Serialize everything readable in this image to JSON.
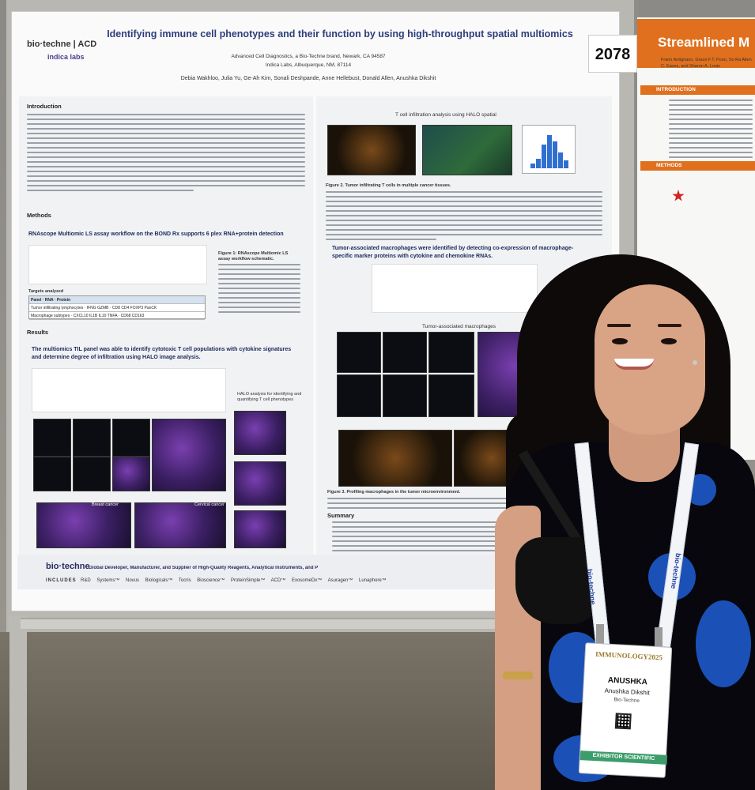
{
  "poster": {
    "number": "2078",
    "title": "Identifying immune cell phenotypes and their function by using high-throughput spatial multiomics",
    "brand_line1": "bio·techne | ACD",
    "brand_line2": "indica labs",
    "affiliation1": "Advanced Cell Diagnostics, a Bio-Techne brand, Newark, CA 94587",
    "affiliation2": "Indica Labs, Albuquerque, NM, 87114",
    "authors": "Debia Wakhloo, Julia Yu, Ge-Ah Kim, Sonali Deshpande, Anne Hellebust, Donald Allen, Anushka Dikshit",
    "intro_heading": "Introduction",
    "methods_heading": "Methods",
    "methods_sub": "RNAscope Multiomic LS assay workflow on the BOND Rx supports 6 plex RNA+protein detection",
    "fig1_caption": "Figure 1: RNAscope Multiomic LS assay workflow schematic.",
    "targets_heading": "Targets analyzed",
    "table": [
      [
        "Panel",
        "RNA",
        "Protein"
      ],
      [
        "Tumor infiltrating lymphocytes",
        "IFNG GZMB",
        "CD8 CD4 FOXP3 PanCK"
      ],
      [
        "Macrophage subtypes",
        "CXCL10 IL1B IL10 TNFA",
        "CD68 CD163"
      ]
    ],
    "results_heading": "Results",
    "results_sub": "The multiomics TIL panel was able to identify cytotoxic T cell populations with cytokine signatures and determine degree of infiltration using HALO image analysis.",
    "halo_caption": "HALO analysis for identifying and quantifying T cell phenotypes",
    "t_infiltration_title": "T cell infiltration analysis using HALO spatial",
    "fig2_caption": "Figure 2. Tumor infiltrating T cells in multiple cancer tissues.",
    "tam_sub": "Tumor-associated macrophages were identified by detecting co-expression of macrophage-specific marker proteins with cytokine and chemokine RNAs.",
    "tam_label": "Tumor-associated macrophages",
    "fig3_caption": "Figure 3. Profiling macrophages in the tumor microenvironment.",
    "summary_heading": "Summary",
    "breast_cancer": "Breast cancer",
    "cervical_cancer": "Cervical cancer",
    "footer_brand": "bio·techne",
    "footer_tag": "Global Developer, Manufacturer, and Supplier of High-Quality Reagents, Analytical Instruments, and Precision Diagnostics.",
    "footer_includes": "INCLUDES",
    "footer_brands": "R&D Systems™ Novus Biologicals™ Tocris Bioscience™ ProteinSimple™ ACD™ ExosomeDx™ Asuragen™ Lunaphore™"
  },
  "neighbor_poster": {
    "title": "Streamlined M",
    "authors": "Frann Antignano, Grace F.T. Poon, So Ra Allen C. Eaves, and Sharon A. Louis",
    "intro_heading": "INTRODUCTION",
    "methods_heading": "METHODS"
  },
  "badge": {
    "event": "IMMUNOLOGY2025",
    "first_name": "ANUSHKA",
    "full_name": "Anushka Dikshit",
    "org": "Bio-Techne",
    "ribbon": "EXHIBITOR SCIENTIFIC",
    "lanyard_text": "bio-techne"
  },
  "colors": {
    "title_blue": "#2c3e7a",
    "accent_orange": "#e0701e",
    "lanyard_blue": "#1f3ea0",
    "ribbon_green": "#3d9d6a"
  }
}
